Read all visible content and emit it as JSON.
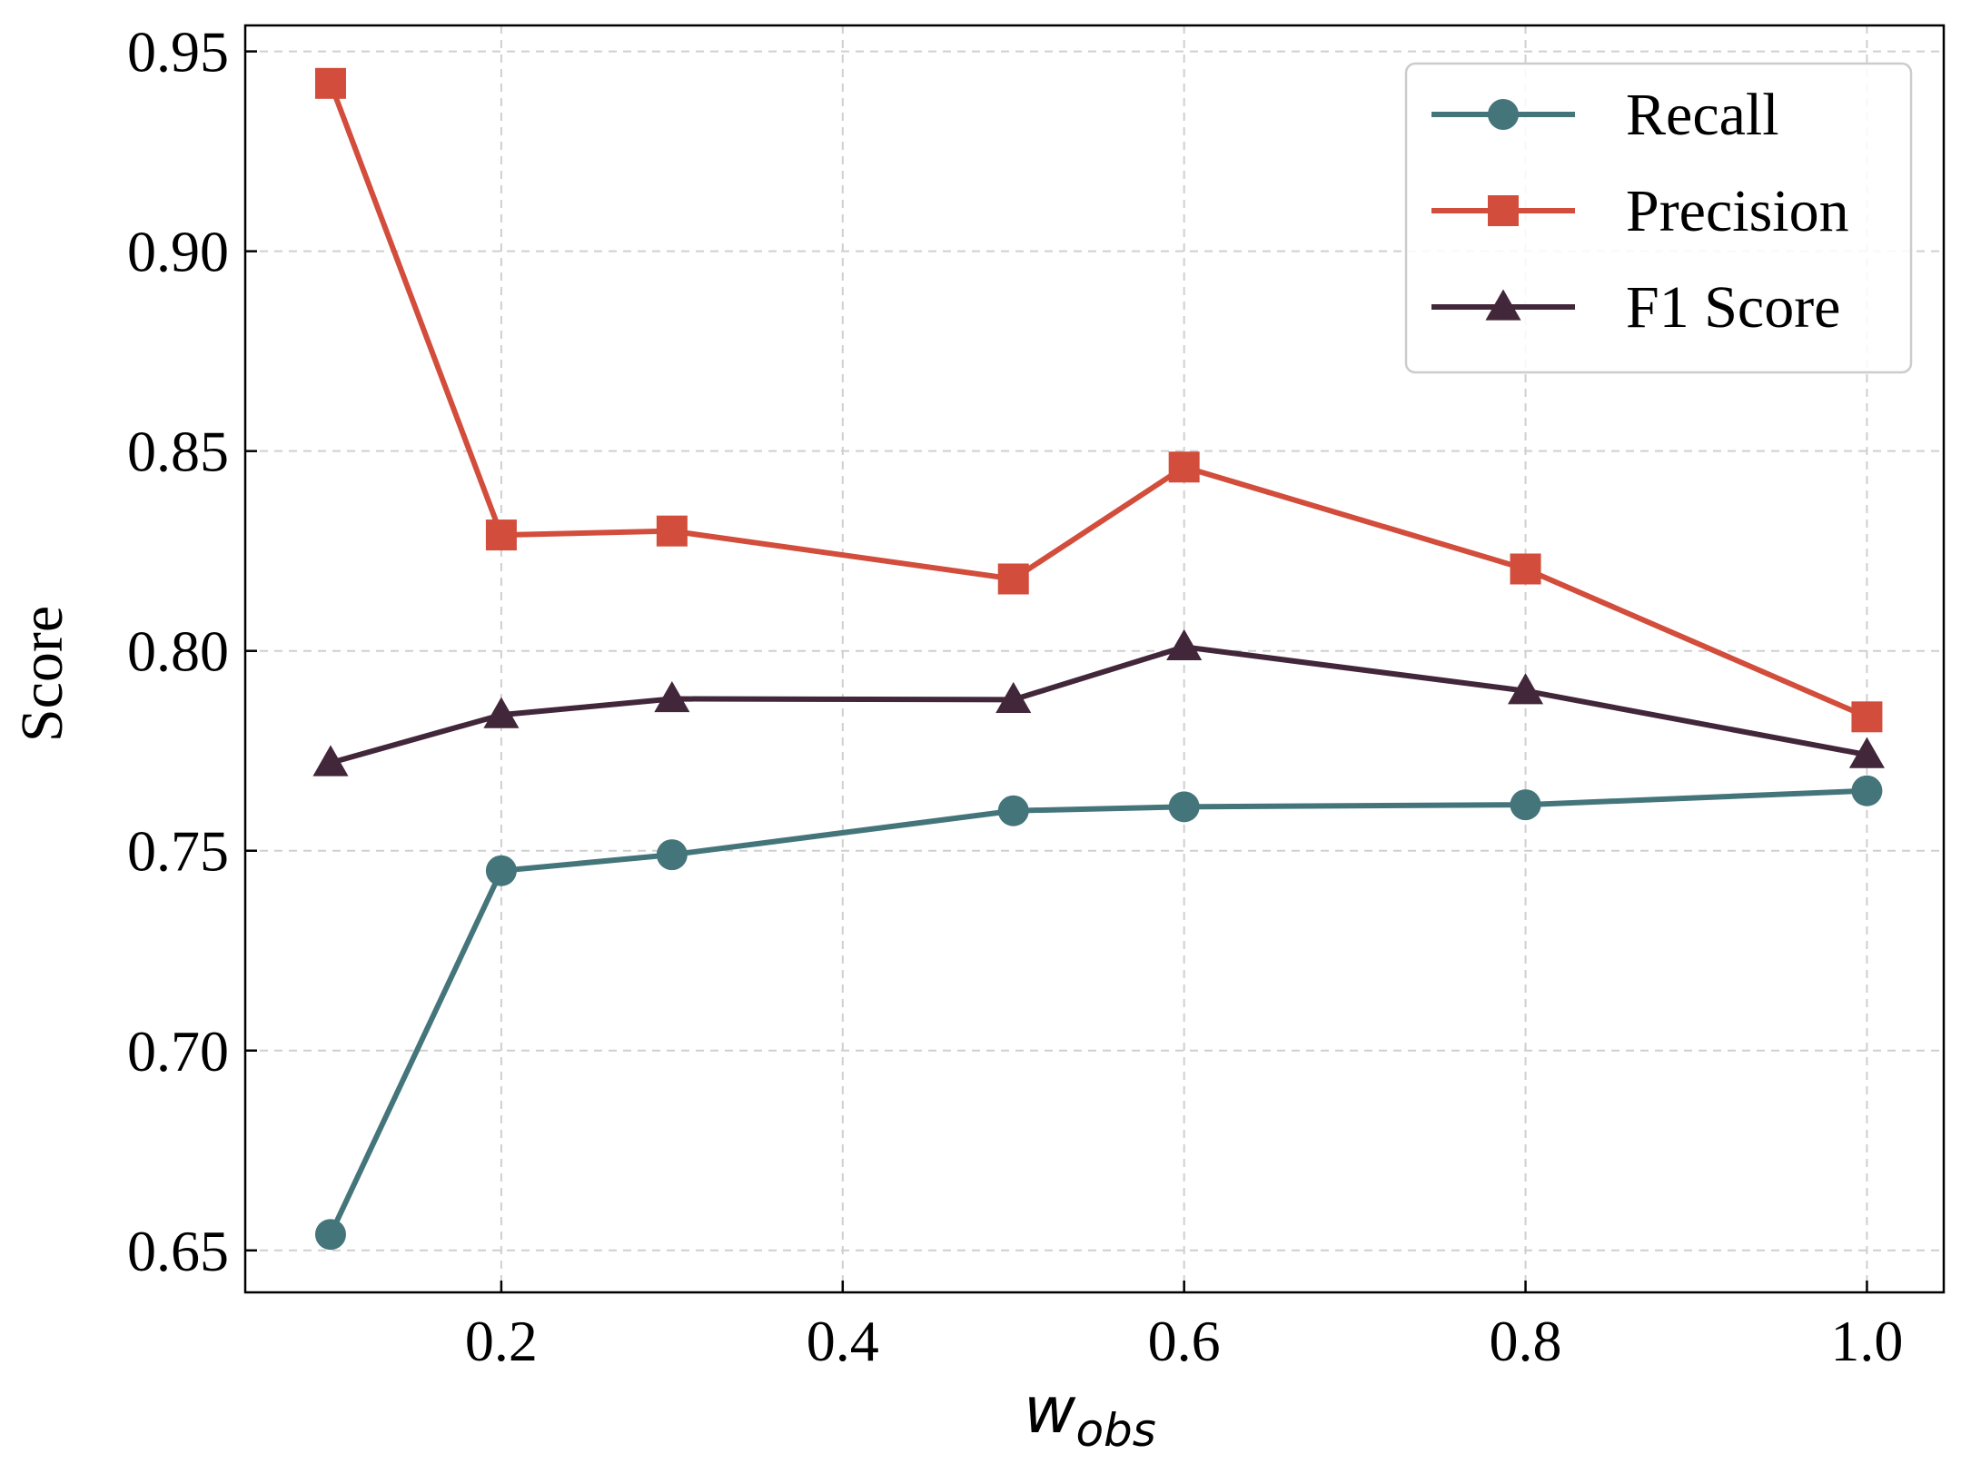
{
  "chart_data": {
    "type": "line",
    "title": "",
    "xlabel_main": "w",
    "xlabel_sub": "obs",
    "ylabel": "Score",
    "xlim": [
      0.05,
      1.045
    ],
    "ylim": [
      0.6395,
      0.9565
    ],
    "grid": true,
    "legend_position": "top-right",
    "x": [
      0.1,
      0.2,
      0.3,
      0.5,
      0.6,
      0.8,
      1.0
    ],
    "x_ticks": [
      0.2,
      0.4,
      0.6,
      0.8,
      1.0
    ],
    "x_tick_labels": [
      "0.2",
      "0.4",
      "0.6",
      "0.8",
      "1.0"
    ],
    "y_ticks": [
      0.65,
      0.7,
      0.75,
      0.8,
      0.85,
      0.9,
      0.95
    ],
    "y_tick_labels": [
      "0.65",
      "0.70",
      "0.75",
      "0.80",
      "0.85",
      "0.90",
      "0.95"
    ],
    "series": [
      {
        "name": "Recall",
        "marker": "circle",
        "color": "#44757a",
        "values": [
          0.654,
          0.745,
          0.749,
          0.76,
          0.761,
          0.7615,
          0.765
        ]
      },
      {
        "name": "Precision",
        "marker": "square",
        "color": "#d24d3b",
        "values": [
          0.942,
          0.829,
          0.83,
          0.818,
          0.846,
          0.8205,
          0.7835
        ]
      },
      {
        "name": "F1 Score",
        "marker": "triangle",
        "color": "#42273a",
        "values": [
          0.772,
          0.784,
          0.788,
          0.7878,
          0.801,
          0.79,
          0.774
        ]
      }
    ]
  }
}
